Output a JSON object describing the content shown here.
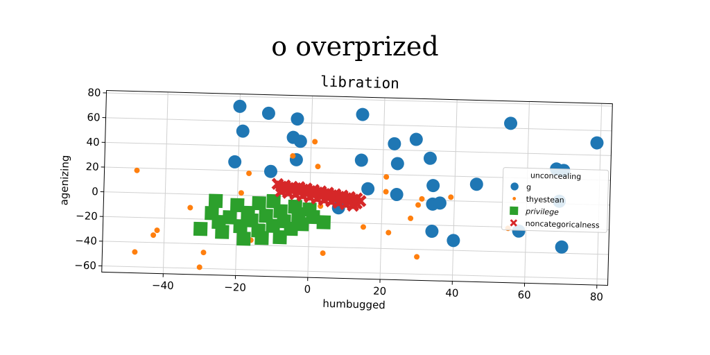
{
  "chart_data": {
    "type": "scatter",
    "suptitle": "o overprized",
    "title": "libration",
    "xlabel": "humbugged",
    "ylabel": "agenizing",
    "xlim": [
      -57,
      83
    ],
    "ylim": [
      -65,
      82
    ],
    "xticks": [
      -40,
      -20,
      0,
      20,
      40,
      60,
      80
    ],
    "yticks": [
      -60,
      -40,
      -20,
      0,
      20,
      40,
      60,
      80
    ],
    "xtick_labels": [
      "−40",
      "−20",
      "0",
      "20",
      "40",
      "60",
      "80"
    ],
    "ytick_labels": [
      "−60",
      "−40",
      "−20",
      "0",
      "20",
      "40",
      "60",
      "80"
    ],
    "grid": true,
    "legend": {
      "title": "unconcealing",
      "placement": "center-right",
      "entries": [
        "g",
        "thyestean",
        "privilege",
        "noncategoricalness"
      ]
    },
    "series": [
      {
        "name": "g",
        "marker": "circle",
        "color": "#1f77b4",
        "points": [
          [
            -20,
            72
          ],
          [
            -12,
            67
          ],
          [
            -4,
            63
          ],
          [
            14,
            68
          ],
          [
            55,
            64
          ],
          [
            79,
            50
          ],
          [
            -19,
            52
          ],
          [
            -5,
            48
          ],
          [
            -3,
            45
          ],
          [
            -4,
            30
          ],
          [
            -21,
            27
          ],
          [
            -11,
            20
          ],
          [
            14,
            31
          ],
          [
            23,
            45
          ],
          [
            24,
            29
          ],
          [
            29,
            49
          ],
          [
            33,
            34
          ],
          [
            34,
            12
          ],
          [
            46,
            14
          ],
          [
            68,
            28
          ],
          [
            70,
            27
          ],
          [
            16,
            8
          ],
          [
            24,
            4
          ],
          [
            34,
            -3
          ],
          [
            36,
            -2
          ],
          [
            69,
            2
          ],
          [
            8,
            -8
          ],
          [
            34,
            -25
          ],
          [
            40,
            -32
          ],
          [
            70,
            -35
          ],
          [
            58,
            -23
          ]
        ]
      },
      {
        "name": "thyestean",
        "marker": "circle-small",
        "color": "#ff7f0e",
        "points": [
          [
            -48,
            18
          ],
          [
            -33,
            -11
          ],
          [
            -42,
            -30
          ],
          [
            -43,
            -34
          ],
          [
            -48,
            -48
          ],
          [
            -29,
            -47
          ],
          [
            -30,
            -59
          ],
          [
            -17,
            18
          ],
          [
            -19,
            2
          ],
          [
            -16,
            -36
          ],
          [
            1,
            45
          ],
          [
            2,
            25
          ],
          [
            -5,
            33
          ],
          [
            4,
            -45
          ],
          [
            15,
            -23
          ],
          [
            21,
            18
          ],
          [
            21,
            6
          ],
          [
            22,
            -27
          ],
          [
            31,
            1
          ],
          [
            30,
            -4
          ],
          [
            28,
            -15
          ],
          [
            30,
            -46
          ],
          [
            39,
            3
          ],
          [
            55,
            -21
          ],
          [
            3,
            -7
          ]
        ]
      },
      {
        "name": "privilege",
        "marker": "square",
        "color": "#2ca02c",
        "points": [
          [
            -26,
            -5
          ],
          [
            -20,
            -8
          ],
          [
            -14,
            -6
          ],
          [
            -10,
            -4
          ],
          [
            -4,
            -8
          ],
          [
            0,
            -10
          ],
          [
            -27,
            -15
          ],
          [
            -22,
            -18
          ],
          [
            -17,
            -14
          ],
          [
            -12,
            -16
          ],
          [
            -8,
            -12
          ],
          [
            -3,
            -18
          ],
          [
            1,
            -16
          ],
          [
            4,
            -20
          ],
          [
            -30,
            -28
          ],
          [
            -24,
            -30
          ],
          [
            -19,
            -25
          ],
          [
            -14,
            -28
          ],
          [
            -10,
            -24
          ],
          [
            -5,
            -26
          ],
          [
            -2,
            -22
          ],
          [
            -18,
            -35
          ],
          [
            -13,
            -34
          ],
          [
            -8,
            -33
          ],
          [
            -25,
            -22
          ],
          [
            -16,
            -20
          ],
          [
            -7,
            -20
          ],
          [
            -3,
            -14
          ]
        ]
      },
      {
        "name": "noncategoricalness",
        "marker": "x",
        "color": "#d62728",
        "points": [
          [
            -8,
            8
          ],
          [
            -6,
            7
          ],
          [
            -4,
            7
          ],
          [
            -2,
            6
          ],
          [
            0,
            5
          ],
          [
            2,
            4
          ],
          [
            4,
            3
          ],
          [
            6,
            2
          ],
          [
            8,
            1
          ],
          [
            10,
            0
          ],
          [
            12,
            -1
          ],
          [
            -7,
            6
          ],
          [
            -5,
            5
          ],
          [
            -3,
            4
          ],
          [
            -1,
            3
          ],
          [
            1,
            2
          ],
          [
            3,
            1
          ],
          [
            5,
            0
          ],
          [
            7,
            -1
          ],
          [
            9,
            -2
          ],
          [
            11,
            -3
          ],
          [
            13,
            -4
          ],
          [
            -8,
            4
          ],
          [
            -6,
            3
          ],
          [
            -4,
            2
          ],
          [
            -2,
            1
          ],
          [
            0,
            0
          ],
          [
            2,
            -1
          ],
          [
            4,
            -2
          ],
          [
            6,
            -3
          ],
          [
            8,
            -4
          ],
          [
            10,
            -5
          ],
          [
            12,
            -6
          ],
          [
            -9,
            10
          ],
          [
            -7,
            9
          ],
          [
            -5,
            8
          ],
          [
            -3,
            8
          ],
          [
            -1,
            7
          ],
          [
            1,
            6
          ],
          [
            3,
            5
          ],
          [
            5,
            4
          ],
          [
            7,
            3
          ],
          [
            9,
            2
          ],
          [
            11,
            1
          ],
          [
            13,
            0
          ],
          [
            14,
            -2
          ],
          [
            12,
            -5
          ]
        ]
      }
    ]
  }
}
